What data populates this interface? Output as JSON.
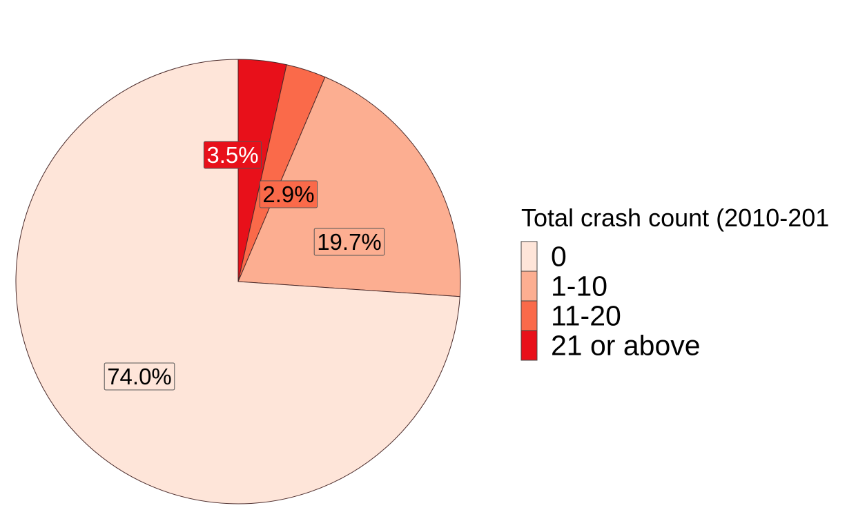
{
  "chart_data": {
    "type": "pie",
    "categories": [
      "21 or above",
      "11-20",
      "1-10",
      "0"
    ],
    "values": [
      3.5,
      2.9,
      19.7,
      74.0
    ],
    "labels": [
      "3.5%",
      "2.9%",
      "19.7%",
      "74.0%"
    ],
    "colors": [
      "#e8101a",
      "#fa6a4a",
      "#fcae91",
      "#fee5d9"
    ],
    "label_text_colors": [
      "#ffffff",
      "#000000",
      "#000000",
      "#000000"
    ],
    "legend": {
      "title": "Total crash count (2010-201",
      "entries": [
        "0",
        "1-10",
        "11-20",
        "21 or above"
      ],
      "entry_colors": [
        "#fee5d9",
        "#fcae91",
        "#fa6a4a",
        "#e8101a"
      ],
      "position": "right"
    },
    "start": "top",
    "direction": "clockwise"
  }
}
